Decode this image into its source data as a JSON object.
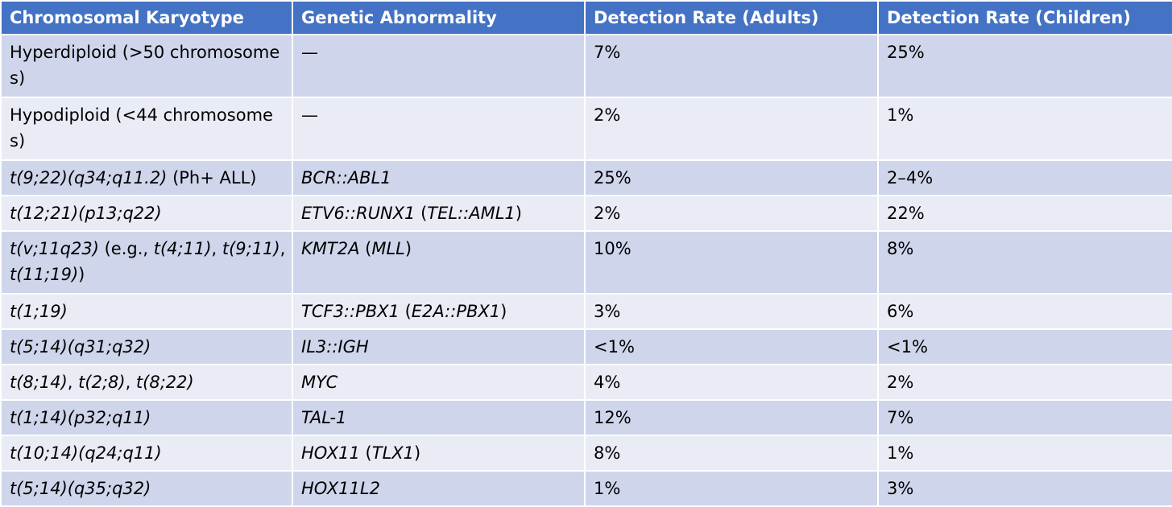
{
  "colors": {
    "header_bg": "#4472c4",
    "header_text": "#ffffff",
    "row_odd_bg": "#cfd5ea",
    "row_even_bg": "#e9ebf5"
  },
  "table": {
    "headers": [
      "Chromosomal Karyotype",
      "Genetic Abnormality",
      "Detection Rate (Adults)",
      "Detection Rate (Children)"
    ],
    "rows": [
      {
        "karyotype": [
          {
            "text": "Hyperdiploid (>50 chromosomes)",
            "italic": false
          }
        ],
        "abnormality": [
          {
            "text": "—",
            "italic": false
          }
        ],
        "adults": "7%",
        "children": "25%"
      },
      {
        "karyotype": [
          {
            "text": "Hypodiploid (<44 chromosomes)",
            "italic": false
          }
        ],
        "abnormality": [
          {
            "text": "—",
            "italic": false
          }
        ],
        "adults": "2%",
        "children": "1%"
      },
      {
        "karyotype": [
          {
            "text": "t(9;22)(q34;q11.2)",
            "italic": true
          },
          {
            "text": " (Ph+ ALL)",
            "italic": false
          }
        ],
        "abnormality": [
          {
            "text": "BCR::ABL1",
            "italic": true
          }
        ],
        "adults": "25%",
        "children": "2–4%"
      },
      {
        "karyotype": [
          {
            "text": "t(12;21)(p13;q22)",
            "italic": true
          }
        ],
        "abnormality": [
          {
            "text": "ETV6::RUNX1",
            "italic": true
          },
          {
            "text": " (",
            "italic": false
          },
          {
            "text": "TEL::AML1",
            "italic": true
          },
          {
            "text": ")",
            "italic": false
          }
        ],
        "adults": "2%",
        "children": "22%"
      },
      {
        "karyotype": [
          {
            "text": "t(v;11q23)",
            "italic": true
          },
          {
            "text": " (e.g., ",
            "italic": false
          },
          {
            "text": "t(4;11)",
            "italic": true
          },
          {
            "text": ", ",
            "italic": false
          },
          {
            "text": "t(9;11)",
            "italic": true
          },
          {
            "text": ", ",
            "italic": false
          },
          {
            "text": "t(11;19)",
            "italic": true
          },
          {
            "text": ")",
            "italic": false
          }
        ],
        "abnormality": [
          {
            "text": "KMT2A",
            "italic": true
          },
          {
            "text": " (",
            "italic": false
          },
          {
            "text": "MLL",
            "italic": true
          },
          {
            "text": ")",
            "italic": false
          }
        ],
        "adults": "10%",
        "children": "8%"
      },
      {
        "karyotype": [
          {
            "text": "t(1;19)",
            "italic": true
          }
        ],
        "abnormality": [
          {
            "text": "TCF3::PBX1",
            "italic": true
          },
          {
            "text": " (",
            "italic": false
          },
          {
            "text": "E2A::PBX1",
            "italic": true
          },
          {
            "text": ")",
            "italic": false
          }
        ],
        "adults": "3%",
        "children": "6%"
      },
      {
        "karyotype": [
          {
            "text": "t(5;14)(q31;q32)",
            "italic": true
          }
        ],
        "abnormality": [
          {
            "text": "IL3::IGH",
            "italic": true
          }
        ],
        "adults": "<1%",
        "children": "<1%"
      },
      {
        "karyotype": [
          {
            "text": "t(8;14)",
            "italic": true
          },
          {
            "text": ", ",
            "italic": false
          },
          {
            "text": "t(2;8)",
            "italic": true
          },
          {
            "text": ", ",
            "italic": false
          },
          {
            "text": "t(8;22)",
            "italic": true
          }
        ],
        "abnormality": [
          {
            "text": "MYC",
            "italic": true
          }
        ],
        "adults": "4%",
        "children": "2%"
      },
      {
        "karyotype": [
          {
            "text": "t(1;14)(p32;q11)",
            "italic": true
          }
        ],
        "abnormality": [
          {
            "text": "TAL-1",
            "italic": true
          }
        ],
        "adults": "12%",
        "children": "7%"
      },
      {
        "karyotype": [
          {
            "text": "t(10;14)(q24;q11)",
            "italic": true
          }
        ],
        "abnormality": [
          {
            "text": "HOX11",
            "italic": true
          },
          {
            "text": " (",
            "italic": false
          },
          {
            "text": "TLX1",
            "italic": true
          },
          {
            "text": ")",
            "italic": false
          }
        ],
        "adults": "8%",
        "children": "1%"
      },
      {
        "karyotype": [
          {
            "text": "t(5;14)(q35;q32)",
            "italic": true
          }
        ],
        "abnormality": [
          {
            "text": "HOX11L2",
            "italic": true
          }
        ],
        "adults": "1%",
        "children": "3%"
      }
    ]
  }
}
